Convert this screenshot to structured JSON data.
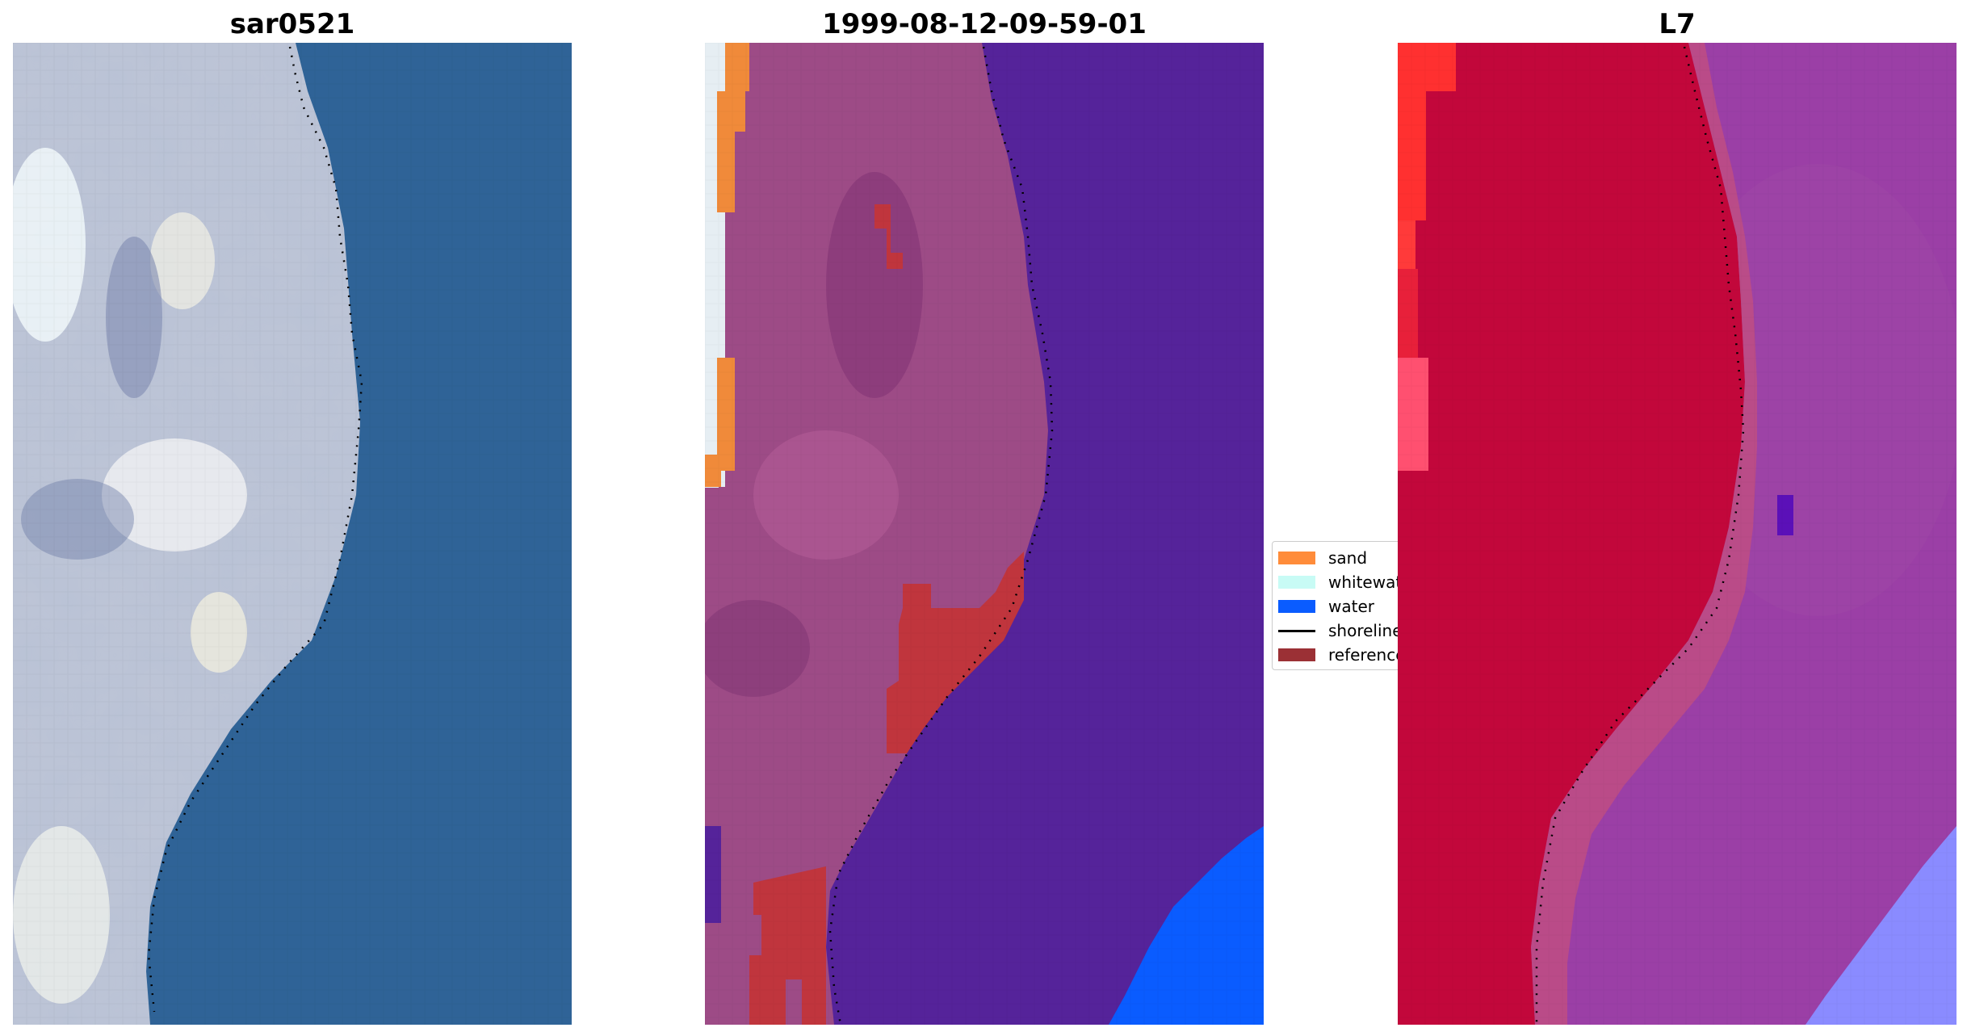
{
  "panels": [
    {
      "title": "sar0521"
    },
    {
      "title": "1999-08-12-09-59-01"
    },
    {
      "title": "L7"
    }
  ],
  "legend": {
    "items": [
      {
        "label": "sand",
        "color": "#ff8c3a"
      },
      {
        "label": "whitewater",
        "color": "#c8fbf5"
      },
      {
        "label": "water",
        "color": "#0a5cff"
      },
      {
        "label": "shoreline",
        "color": "#000000"
      },
      {
        "label": "reference",
        "color": "#9b3035"
      }
    ]
  },
  "colors": {
    "water_blue": "#2d5f93",
    "land_rgb": "#c4cad8",
    "land_overlay": "#9a4a86",
    "water_overlay": "#55239a",
    "classified_water": "#0a5cff",
    "l7_land": "#c4073a",
    "l7_water": "#8e3ca8",
    "l7_shallow": "#8a8bff",
    "l7_sand": "#ff3030"
  }
}
